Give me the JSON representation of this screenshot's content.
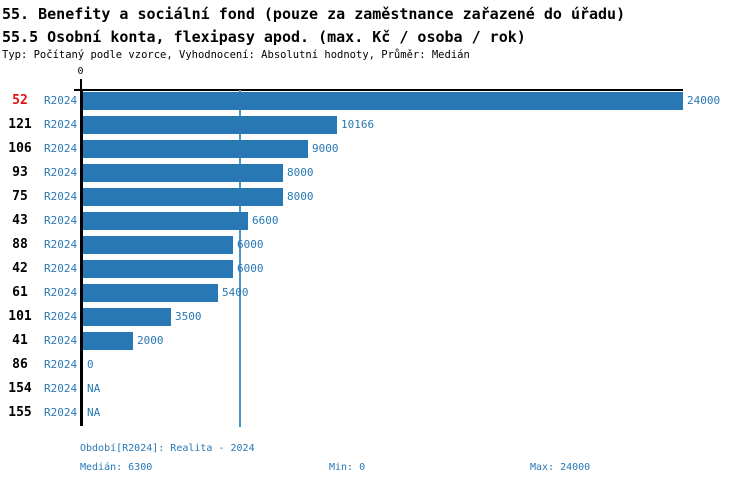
{
  "header": {
    "title_line1": "55. Benefity a sociální fond (pouze za zaměstnance zařazené do úřadu)",
    "title_line2": "55.5 Osobní konta, flexipasy apod. (max. Kč / osoba / rok)",
    "meta_line": "Typ: Počítaný podle vzorce, Vyhodnocení: Absolutní hodnoty, Průměr: Medián"
  },
  "colors": {
    "bar": "#2878b5",
    "label_blue": "#2878b5",
    "highlight_red": "#dd1212",
    "median_line": "#4a97c9",
    "axis": "#000000"
  },
  "chart_data": {
    "type": "bar",
    "orientation": "horizontal",
    "title": "55.5 Osobní konta, flexipasy apod. (max. Kč / osoba / rok)",
    "xlabel": "",
    "ylabel": "",
    "xlim": [
      0,
      24000
    ],
    "x_tick_labels": [
      "0"
    ],
    "grid": false,
    "median_line_value": 6300,
    "rows": [
      {
        "id": "52",
        "period": "R2024",
        "value": 24000,
        "value_label": "24000",
        "highlighted": true
      },
      {
        "id": "121",
        "period": "R2024",
        "value": 10166,
        "value_label": "10166",
        "highlighted": false
      },
      {
        "id": "106",
        "period": "R2024",
        "value": 9000,
        "value_label": "9000",
        "highlighted": false
      },
      {
        "id": "93",
        "period": "R2024",
        "value": 8000,
        "value_label": "8000",
        "highlighted": false
      },
      {
        "id": "75",
        "period": "R2024",
        "value": 8000,
        "value_label": "8000",
        "highlighted": false
      },
      {
        "id": "43",
        "period": "R2024",
        "value": 6600,
        "value_label": "6600",
        "highlighted": false
      },
      {
        "id": "88",
        "period": "R2024",
        "value": 6000,
        "value_label": "6000",
        "highlighted": false
      },
      {
        "id": "42",
        "period": "R2024",
        "value": 6000,
        "value_label": "6000",
        "highlighted": false
      },
      {
        "id": "61",
        "period": "R2024",
        "value": 5400,
        "value_label": "5400",
        "highlighted": false
      },
      {
        "id": "101",
        "period": "R2024",
        "value": 3500,
        "value_label": "3500",
        "highlighted": false
      },
      {
        "id": "41",
        "period": "R2024",
        "value": 2000,
        "value_label": "2000",
        "highlighted": false
      },
      {
        "id": "86",
        "period": "R2024",
        "value": 0,
        "value_label": "0",
        "highlighted": false
      },
      {
        "id": "154",
        "period": "R2024",
        "value": null,
        "value_label": "NA",
        "highlighted": false
      },
      {
        "id": "155",
        "period": "R2024",
        "value": null,
        "value_label": "NA",
        "highlighted": false
      }
    ]
  },
  "footer": {
    "period_line": "Období[R2024]: Realita - 2024",
    "median_label": "Medián: 6300",
    "min_label": "Min: 0",
    "max_label": "Max: 24000"
  }
}
